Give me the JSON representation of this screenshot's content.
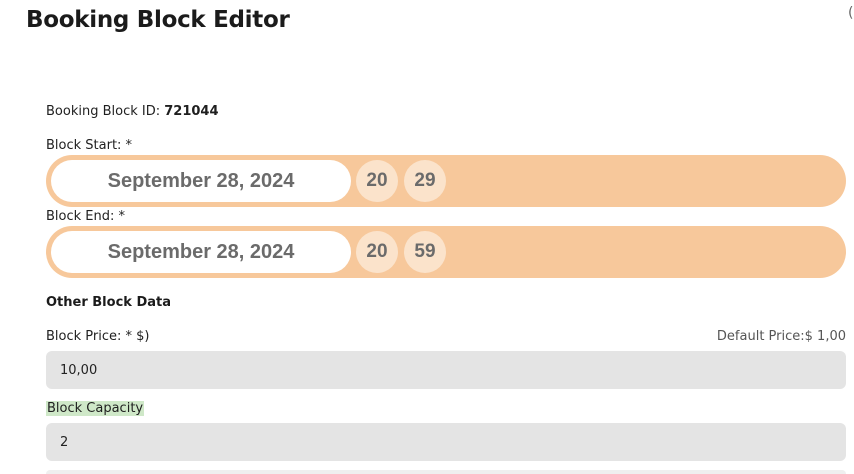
{
  "page": {
    "title": "Booking Block Editor",
    "corner_glyph": "("
  },
  "block": {
    "id_label": "Booking Block ID: ",
    "id_value": "721044",
    "start": {
      "label": "Block Start: *",
      "date": "September 28, 2024",
      "hour": "20",
      "minute": "29"
    },
    "end": {
      "label": "Block End: *",
      "date": "September 28, 2024",
      "hour": "20",
      "minute": "59"
    }
  },
  "other": {
    "section_title": "Other Block Data",
    "price_label": "Block Price: * $)",
    "default_price": "Default Price:$ 1,00",
    "price_value": "10,00",
    "capacity_label": "Block Capacity",
    "capacity_value": "2"
  },
  "colors": {
    "datetime_row": "#f7c89b",
    "time_circle": "#fbe3cb",
    "input_bg": "#e4e4e4",
    "capacity_highlight": "#cfe8c8"
  }
}
